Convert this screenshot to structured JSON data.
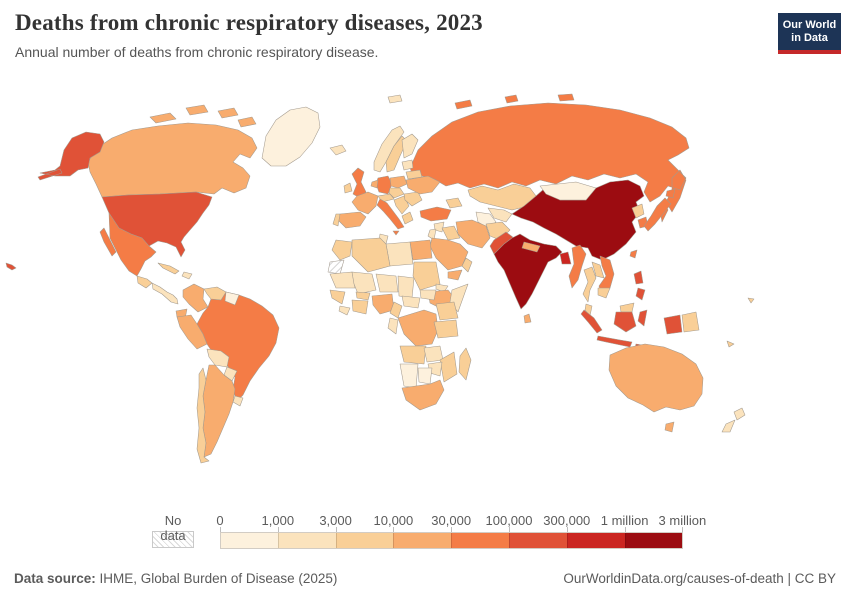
{
  "header": {
    "title": "Deaths from chronic respiratory diseases, 2023",
    "subtitle": "Annual number of deaths from chronic respiratory disease.",
    "logo_line1": "Our World",
    "logo_line2": "in Data",
    "logo_bg": "#1d3456",
    "logo_accent": "#c5292a"
  },
  "legend": {
    "no_data_label": "No data",
    "ticks": [
      "0",
      "1,000",
      "3,000",
      "10,000",
      "30,000",
      "100,000",
      "300,000",
      "1 million",
      "3 million"
    ]
  },
  "footer": {
    "source_label": "Data source:",
    "source_text": " IHME, Global Burden of Disease (2025)",
    "right_text": "OurWorldinData.org/causes-of-death | CC BY"
  },
  "chart_data": {
    "type": "choropleth",
    "title": "Deaths from chronic respiratory diseases, 2023",
    "year": "2023",
    "unit": "deaths",
    "legend_position": "bottom",
    "bins": [
      {
        "label": "0–1,000",
        "color": "#FDF1DD"
      },
      {
        "label": "1,000–3,000",
        "color": "#FBE3BD"
      },
      {
        "label": "3,000–10,000",
        "color": "#F9CF97"
      },
      {
        "label": "10,000–30,000",
        "color": "#F8AC6E"
      },
      {
        "label": "30,000–100,000",
        "color": "#F47C46"
      },
      {
        "label": "100,000–300,000",
        "color": "#E05237"
      },
      {
        "label": "300,000–1 million",
        "color": "#CB2621"
      },
      {
        "label": "1 million–3 million",
        "color": "#9C0C11"
      }
    ],
    "no_data": {
      "label": "No data",
      "ids": [
        "western-sahara"
      ],
      "names": [
        "Western Sahara"
      ]
    },
    "countries": [
      {
        "id": "greenland",
        "name": "Greenland",
        "bin": 1
      },
      {
        "id": "iceland",
        "name": "Iceland",
        "bin": 2
      },
      {
        "id": "canada",
        "name": "Canada",
        "bin": 4
      },
      {
        "id": "united-states",
        "name": "United States",
        "bin": 6
      },
      {
        "id": "mexico",
        "name": "Mexico",
        "bin": 5
      },
      {
        "id": "guatemala",
        "name": "Guatemala/Honduras",
        "bin": 3
      },
      {
        "id": "central-america",
        "name": "Nicaragua/Costa Rica/Panama",
        "bin": 2
      },
      {
        "id": "cuba",
        "name": "Cuba",
        "bin": 3
      },
      {
        "id": "hispaniola",
        "name": "Haiti/Dominican Republic",
        "bin": 2
      },
      {
        "id": "colombia",
        "name": "Colombia",
        "bin": 4
      },
      {
        "id": "venezuela",
        "name": "Venezuela",
        "bin": 3
      },
      {
        "id": "guyana",
        "name": "Guyana/Suriname",
        "bin": 1
      },
      {
        "id": "ecuador",
        "name": "Ecuador",
        "bin": 4
      },
      {
        "id": "peru",
        "name": "Peru",
        "bin": 4
      },
      {
        "id": "brazil",
        "name": "Brazil",
        "bin": 5
      },
      {
        "id": "bolivia",
        "name": "Bolivia",
        "bin": 2
      },
      {
        "id": "paraguay",
        "name": "Paraguay",
        "bin": 2
      },
      {
        "id": "uruguay",
        "name": "Uruguay",
        "bin": 2
      },
      {
        "id": "argentina",
        "name": "Argentina",
        "bin": 4
      },
      {
        "id": "chile",
        "name": "Chile",
        "bin": 3
      },
      {
        "id": "united-kingdom",
        "name": "United Kingdom",
        "bin": 5
      },
      {
        "id": "ireland",
        "name": "Ireland",
        "bin": 3
      },
      {
        "id": "norway",
        "name": "Norway",
        "bin": 2
      },
      {
        "id": "sweden",
        "name": "Sweden",
        "bin": 3
      },
      {
        "id": "finland",
        "name": "Finland",
        "bin": 2
      },
      {
        "id": "denmark",
        "name": "Denmark",
        "bin": 3
      },
      {
        "id": "france",
        "name": "France",
        "bin": 4
      },
      {
        "id": "spain",
        "name": "Spain",
        "bin": 4
      },
      {
        "id": "portugal",
        "name": "Portugal",
        "bin": 3
      },
      {
        "id": "germany",
        "name": "Germany",
        "bin": 5
      },
      {
        "id": "benelux",
        "name": "Netherlands/Belgium",
        "bin": 4
      },
      {
        "id": "italy",
        "name": "Italy",
        "bin": 5
      },
      {
        "id": "alpine",
        "name": "Switzerland/Austria",
        "bin": 3
      },
      {
        "id": "poland",
        "name": "Poland",
        "bin": 4
      },
      {
        "id": "czechia-hungary",
        "name": "Czechia/Slovakia/Hungary",
        "bin": 3
      },
      {
        "id": "balkans",
        "name": "Balkans",
        "bin": 3
      },
      {
        "id": "greece",
        "name": "Greece",
        "bin": 3
      },
      {
        "id": "romania",
        "name": "Romania/Bulgaria",
        "bin": 3
      },
      {
        "id": "ukraine",
        "name": "Ukraine",
        "bin": 4
      },
      {
        "id": "belarus",
        "name": "Belarus",
        "bin": 3
      },
      {
        "id": "baltics",
        "name": "Baltic states",
        "bin": 2
      },
      {
        "id": "russia",
        "name": "Russia",
        "bin": 5
      },
      {
        "id": "kazakhstan",
        "name": "Kazakhstan",
        "bin": 3
      },
      {
        "id": "uzbekistan",
        "name": "Uzbekistan",
        "bin": 2
      },
      {
        "id": "turkmenistan",
        "name": "Turkmenistan",
        "bin": 1
      },
      {
        "id": "kyrgyzstan-tajikistan",
        "name": "Kyrgyzstan/Tajikistan",
        "bin": 2
      },
      {
        "id": "caucasus",
        "name": "Caucasus",
        "bin": 3
      },
      {
        "id": "turkey",
        "name": "Turkey",
        "bin": 5
      },
      {
        "id": "syria",
        "name": "Syria",
        "bin": 2
      },
      {
        "id": "iraq",
        "name": "Iraq",
        "bin": 3
      },
      {
        "id": "iran",
        "name": "Iran",
        "bin": 4
      },
      {
        "id": "afghanistan",
        "name": "Afghanistan",
        "bin": 3
      },
      {
        "id": "pakistan",
        "name": "Pakistan",
        "bin": 6
      },
      {
        "id": "saudi-arabia",
        "name": "Saudi Arabia",
        "bin": 4
      },
      {
        "id": "yemen",
        "name": "Yemen",
        "bin": 4
      },
      {
        "id": "oman",
        "name": "Oman",
        "bin": 3
      },
      {
        "id": "jordan-israel",
        "name": "Jordan/Israel",
        "bin": 2
      },
      {
        "id": "egypt",
        "name": "Egypt",
        "bin": 4
      },
      {
        "id": "libya",
        "name": "Libya",
        "bin": 2
      },
      {
        "id": "tunisia",
        "name": "Tunisia",
        "bin": 2
      },
      {
        "id": "algeria",
        "name": "Algeria",
        "bin": 3
      },
      {
        "id": "morocco",
        "name": "Morocco",
        "bin": 3
      },
      {
        "id": "mauritania",
        "name": "Mauritania",
        "bin": 2
      },
      {
        "id": "mali",
        "name": "Mali",
        "bin": 2
      },
      {
        "id": "niger",
        "name": "Niger",
        "bin": 2
      },
      {
        "id": "chad",
        "name": "Chad",
        "bin": 2
      },
      {
        "id": "sudan",
        "name": "Sudan",
        "bin": 3
      },
      {
        "id": "eritrea",
        "name": "Eritrea/Djibouti",
        "bin": 2
      },
      {
        "id": "ethiopia",
        "name": "Ethiopia",
        "bin": 4
      },
      {
        "id": "somalia",
        "name": "Somalia",
        "bin": 2
      },
      {
        "id": "senegal-guinea",
        "name": "Senegal/Guinea",
        "bin": 3
      },
      {
        "id": "liberia-sierra-leone",
        "name": "Liberia/Sierra Leone",
        "bin": 2
      },
      {
        "id": "cote-divoire-ghana",
        "name": "Côte d'Ivoire/Ghana",
        "bin": 3
      },
      {
        "id": "burkina-faso",
        "name": "Burkina Faso",
        "bin": 3
      },
      {
        "id": "nigeria",
        "name": "Nigeria",
        "bin": 4
      },
      {
        "id": "cameroon",
        "name": "Cameroon",
        "bin": 3
      },
      {
        "id": "central-african-republic",
        "name": "Central African Republic",
        "bin": 2
      },
      {
        "id": "south-sudan",
        "name": "South Sudan",
        "bin": 2
      },
      {
        "id": "dr-congo",
        "name": "Democratic Republic of Congo",
        "bin": 4
      },
      {
        "id": "gabon-congo",
        "name": "Gabon/Congo",
        "bin": 2
      },
      {
        "id": "uganda-kenya",
        "name": "Uganda/Kenya",
        "bin": 3
      },
      {
        "id": "tanzania",
        "name": "Tanzania",
        "bin": 3
      },
      {
        "id": "angola",
        "name": "Angola",
        "bin": 3
      },
      {
        "id": "zambia",
        "name": "Zambia",
        "bin": 2
      },
      {
        "id": "mozambique",
        "name": "Mozambique",
        "bin": 3
      },
      {
        "id": "zimbabwe",
        "name": "Zimbabwe",
        "bin": 2
      },
      {
        "id": "namibia",
        "name": "Namibia",
        "bin": 1
      },
      {
        "id": "botswana",
        "name": "Botswana",
        "bin": 1
      },
      {
        "id": "south-africa",
        "name": "South Africa",
        "bin": 4
      },
      {
        "id": "madagascar",
        "name": "Madagascar",
        "bin": 3
      },
      {
        "id": "mongolia",
        "name": "Mongolia",
        "bin": 1
      },
      {
        "id": "china",
        "name": "China",
        "bin": 8
      },
      {
        "id": "taiwan",
        "name": "Taiwan",
        "bin": 5
      },
      {
        "id": "north-korea",
        "name": "North Korea",
        "bin": 3
      },
      {
        "id": "south-korea",
        "name": "South Korea",
        "bin": 5
      },
      {
        "id": "japan",
        "name": "Japan",
        "bin": 5
      },
      {
        "id": "india",
        "name": "India",
        "bin": 8
      },
      {
        "id": "sri-lanka",
        "name": "Sri Lanka",
        "bin": 4
      },
      {
        "id": "nepal",
        "name": "Nepal",
        "bin": 4
      },
      {
        "id": "bangladesh",
        "name": "Bangladesh",
        "bin": 7
      },
      {
        "id": "myanmar",
        "name": "Myanmar",
        "bin": 5
      },
      {
        "id": "thailand",
        "name": "Thailand",
        "bin": 3
      },
      {
        "id": "laos",
        "name": "Laos",
        "bin": 3
      },
      {
        "id": "vietnam",
        "name": "Vietnam",
        "bin": 5
      },
      {
        "id": "cambodia",
        "name": "Cambodia",
        "bin": 3
      },
      {
        "id": "malaysia",
        "name": "Malaysia",
        "bin": 3
      },
      {
        "id": "indonesia",
        "name": "Indonesia",
        "bin": 6
      },
      {
        "id": "philippines",
        "name": "Philippines",
        "bin": 6
      },
      {
        "id": "papua-new-guinea",
        "name": "Papua New Guinea",
        "bin": 3
      },
      {
        "id": "australia",
        "name": "Australia",
        "bin": 4
      },
      {
        "id": "new-zealand",
        "name": "New Zealand",
        "bin": 2
      },
      {
        "id": "pacific-islands",
        "name": "Pacific islands",
        "bin": 3
      }
    ]
  }
}
